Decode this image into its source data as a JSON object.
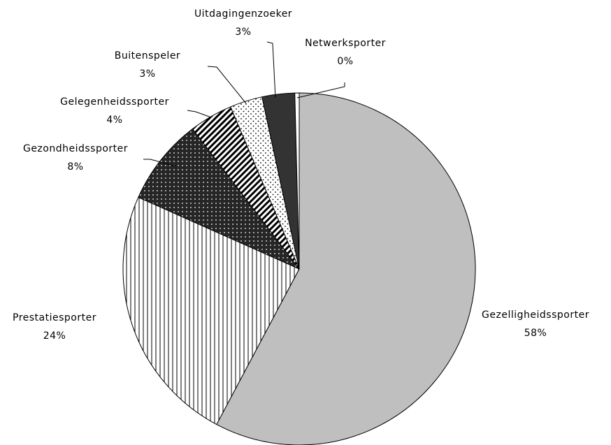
{
  "chart_data": {
    "type": "pie",
    "categories": [
      "Gezelligheidssporter",
      "Prestatiesporter",
      "Gezondheidssporter",
      "Gelegenheidssporter",
      "Buitenspeler",
      "Uitdagingenzoeker",
      "Netwerksporter"
    ],
    "values": [
      58,
      24,
      8,
      4,
      3,
      3,
      0.4
    ],
    "value_labels": [
      "58%",
      "24%",
      "8%",
      "4%",
      "3%",
      "3%",
      "0%"
    ],
    "colors": [
      "#bfbfbf",
      "#ffffff",
      "#262626",
      "#ffffff",
      "#ffffff",
      "#333333",
      "#ffffff"
    ]
  }
}
